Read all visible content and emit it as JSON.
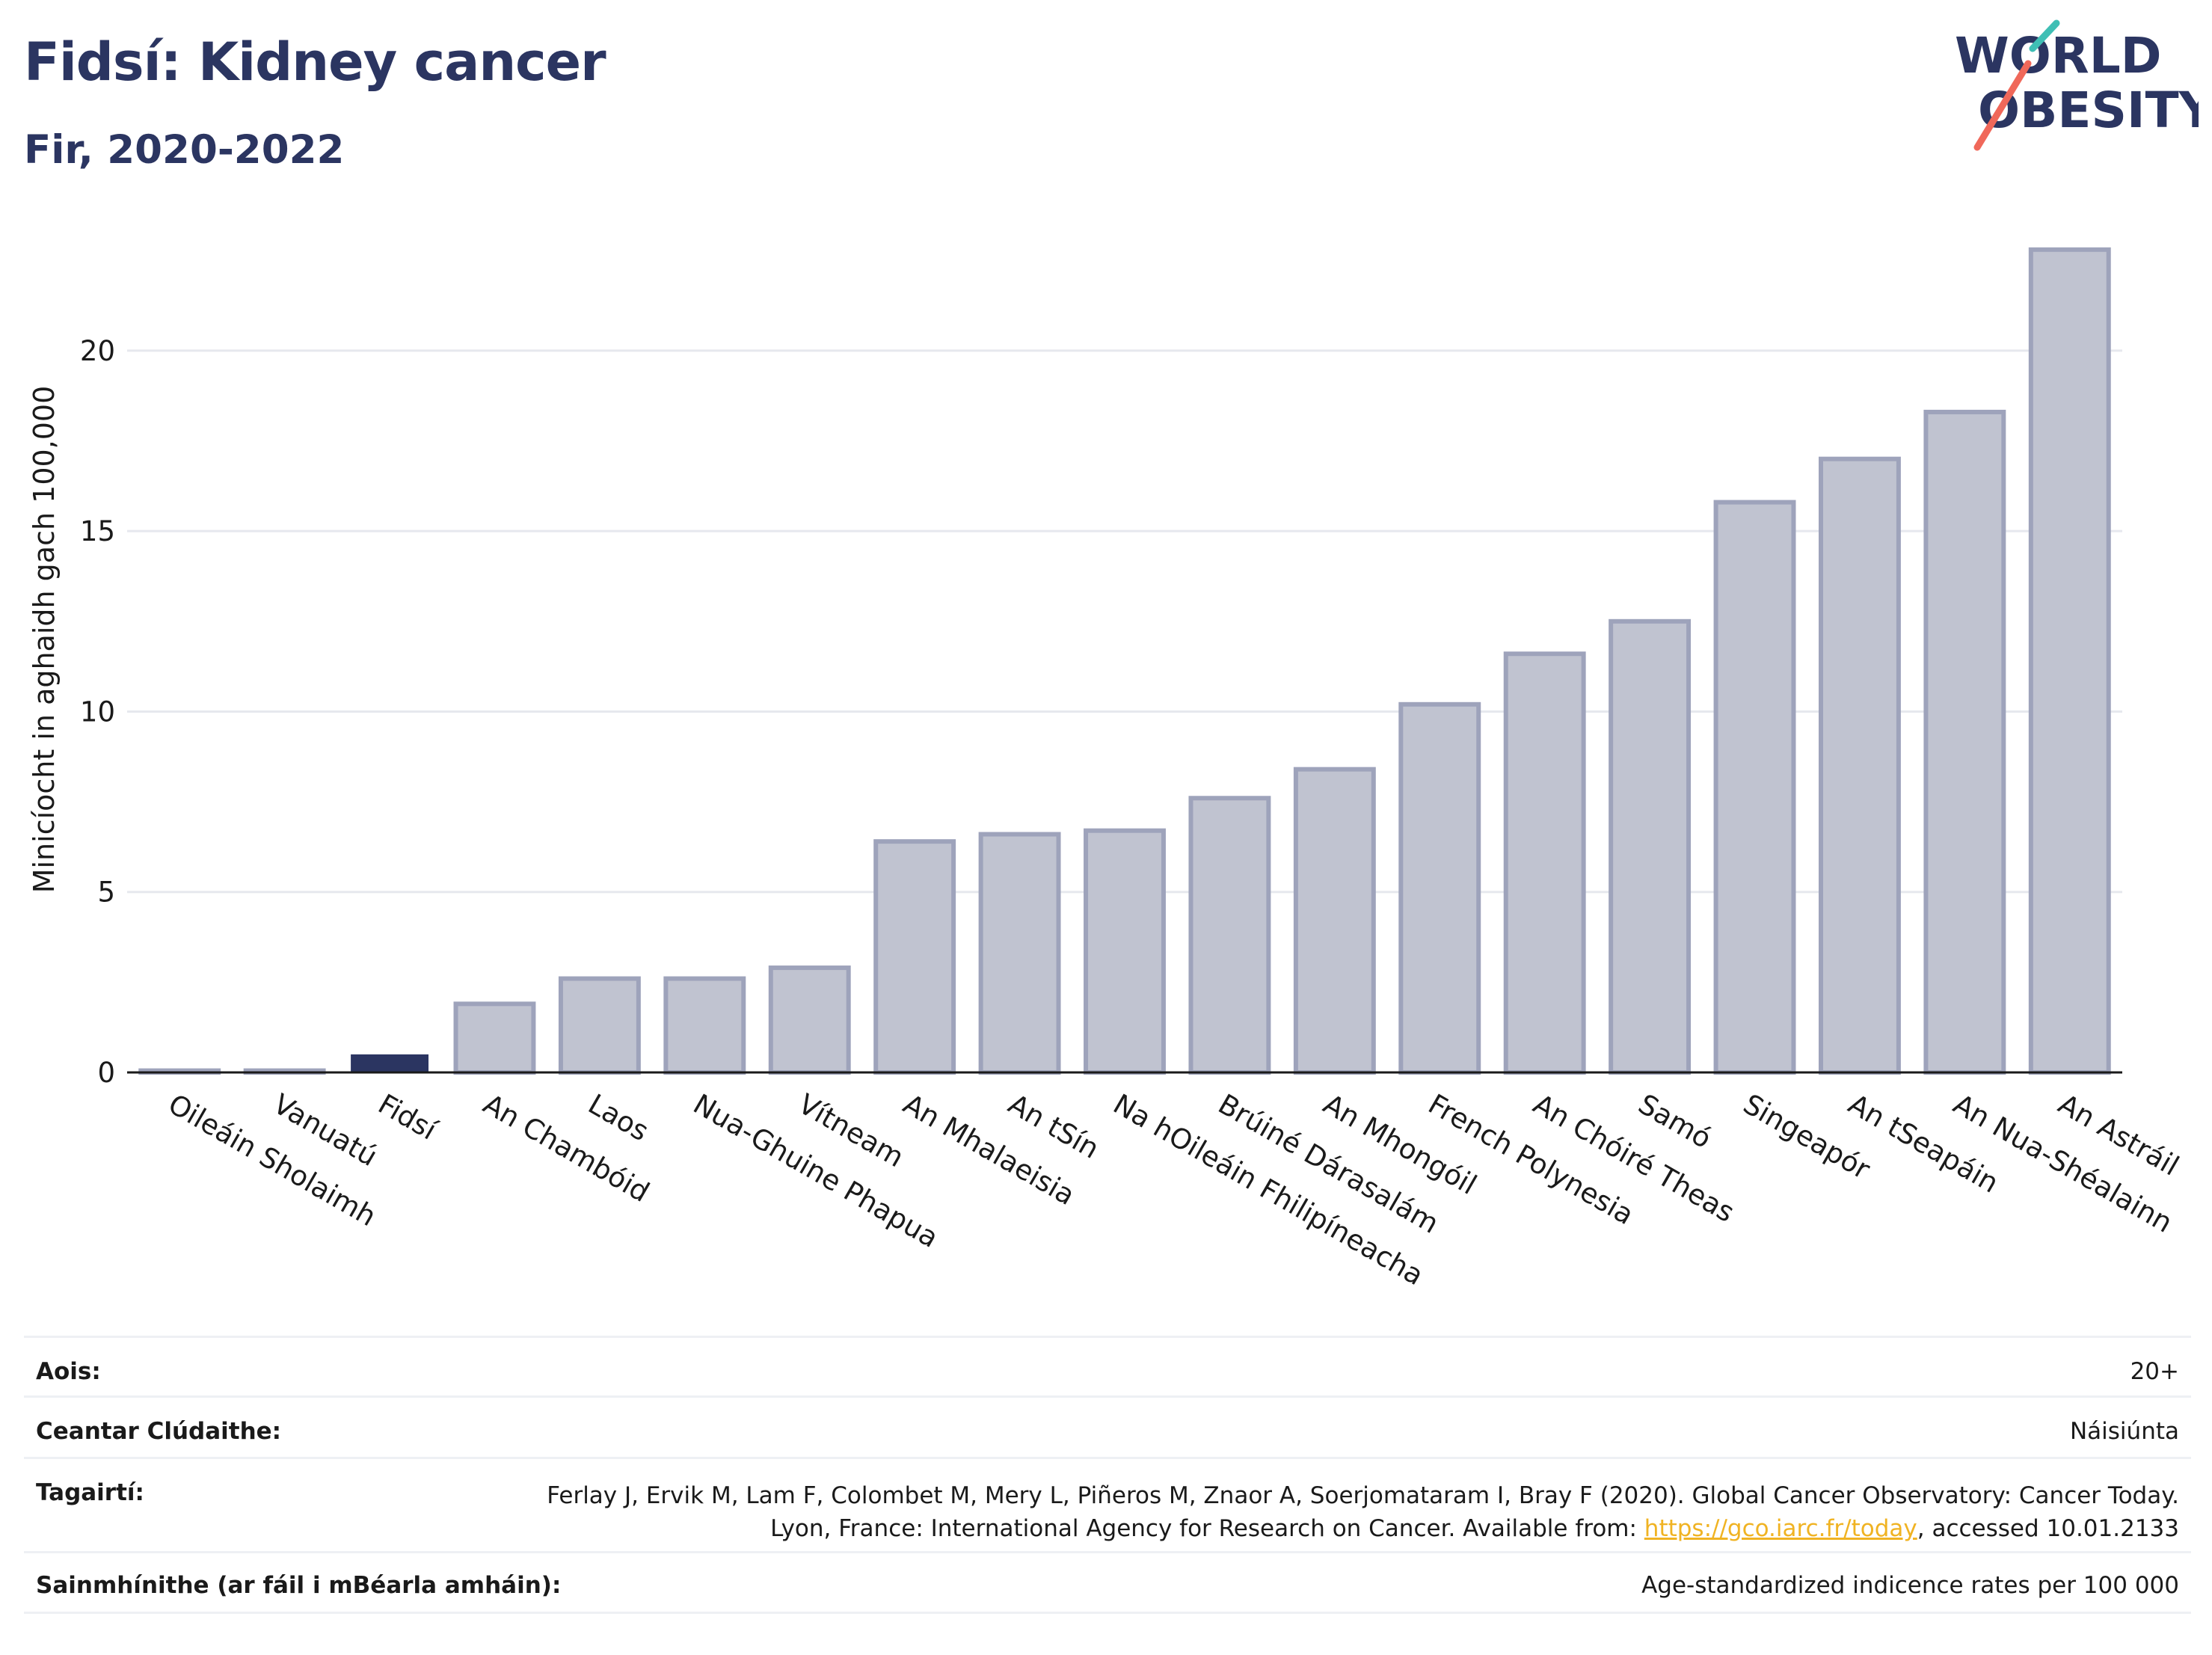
{
  "header": {
    "title": "Fidsí: Kidney cancer",
    "subtitle": "Fir, 2020-2022",
    "logo_text_line1": "WORLD",
    "logo_text_line2": "OBESITY"
  },
  "colors": {
    "title": "#2b3561",
    "highlight_bar": "#2b3561",
    "other_bar_fill": "#c0c3d0",
    "other_bar_stroke": "#9ea3bb",
    "grid": "#e6e8ee",
    "logo_teal": "#3fbfb5",
    "logo_red": "#f0685a",
    "link": "#f0b323"
  },
  "chart_data": {
    "type": "bar",
    "ylabel": "Minicíocht in aghaidh gach 100,000",
    "ylim": [
      0,
      23.5
    ],
    "yticks": [
      0,
      5,
      10,
      15,
      20
    ],
    "grid": true,
    "highlight_category": "Fidsí",
    "categories": [
      "Oileáin Sholaimh",
      "Vanuatú",
      "Fidsí",
      "An Chambóid",
      "Laos",
      "Nua-Ghuine Phapua",
      "Vítneam",
      "An Mhalaeisia",
      "An tSín",
      "Na hOileáin Fhilipíneacha",
      "Brúiné Dárasalám",
      "An Mhongóil",
      "French Polynesia",
      "An Chóiré Theas",
      "Samó",
      "Singeapór",
      "An tSeapáin",
      "An Nua-Shéalainn",
      "An Astráil"
    ],
    "values": [
      0.05,
      0.05,
      0.5,
      1.9,
      2.6,
      2.6,
      2.9,
      6.4,
      6.6,
      6.7,
      7.6,
      8.4,
      10.2,
      11.6,
      12.5,
      15.8,
      17.0,
      18.3,
      22.8
    ]
  },
  "info": {
    "age_label": "Aois:",
    "age_value": "20+",
    "coverage_label": "Ceantar Clúdaithe:",
    "coverage_value": "Náisiúnta",
    "refs_label": "Tagairtí:",
    "refs_text_1": "Ferlay J, Ervik M, Lam F, Colombet M, Mery L, Piñeros M, Znaor A, Soerjomataram I, Bray F (2020). Global Cancer Observatory: Cancer Today. Lyon, France: International Agency for Research on Cancer. Available from: ",
    "refs_link": "https://gco.iarc.fr/today",
    "refs_text_2": ", accessed 10.01.2133",
    "defs_label": "Sainmhínithe (ar fáil i mBéarla amháin):",
    "defs_value": "Age-standardized indicence rates per 100 000"
  }
}
